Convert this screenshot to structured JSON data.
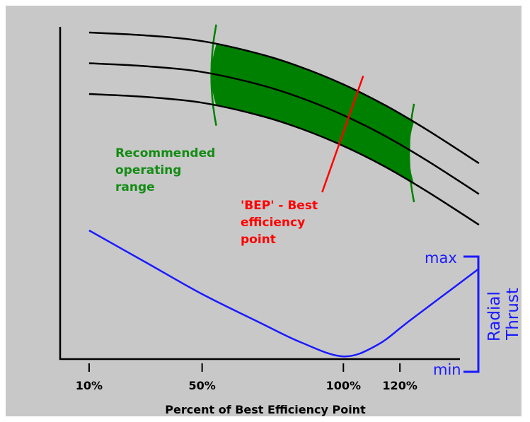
{
  "chart_data": {
    "type": "line",
    "title": "",
    "xlabel": "Percent of Best Efficiency Point",
    "ylabel": "",
    "xlim": [
      0,
      140
    ],
    "x_ticks": [
      {
        "label": "10%",
        "value": 10
      },
      {
        "label": "50%",
        "value": 50
      },
      {
        "label": "100%",
        "value": 100
      },
      {
        "label": "120%",
        "value": 120
      }
    ],
    "grid": false,
    "colors": {
      "background": "#c8c8c8",
      "pump_curve": "#000000",
      "operating_range": "#008000",
      "range_label": "#138c13",
      "bep": "#ff0000",
      "radial_thrust": "#1a1aff",
      "axis": "#000000"
    },
    "pump_curves": {
      "x": [
        10,
        30,
        50,
        70,
        85,
        100,
        115,
        130,
        148
      ],
      "series": [
        {
          "values": [
            100,
            98.5,
            95.5,
            89,
            82,
            73,
            62,
            49,
            32
          ]
        },
        {
          "values": [
            84,
            82.5,
            79.5,
            73,
            66,
            57,
            46,
            33,
            16
          ]
        },
        {
          "values": [
            68,
            66.5,
            63.5,
            57,
            50,
            41,
            30,
            17,
            0
          ]
        }
      ]
    },
    "operating_range": {
      "x_min": 55,
      "x_max": 125,
      "label": [
        "Recommended",
        "operating",
        "range"
      ]
    },
    "bep": {
      "x": 100,
      "label": [
        "'BEP' - Best",
        "efficiency",
        "point"
      ]
    },
    "radial_thrust": {
      "name": "Radial Thrust",
      "x": [
        10,
        30,
        50,
        70,
        85,
        100,
        112,
        124,
        148
      ],
      "values": [
        100,
        75,
        50,
        28,
        12,
        1,
        10,
        30,
        70
      ],
      "scale_max_label": "max",
      "scale_min_label": "min"
    }
  }
}
